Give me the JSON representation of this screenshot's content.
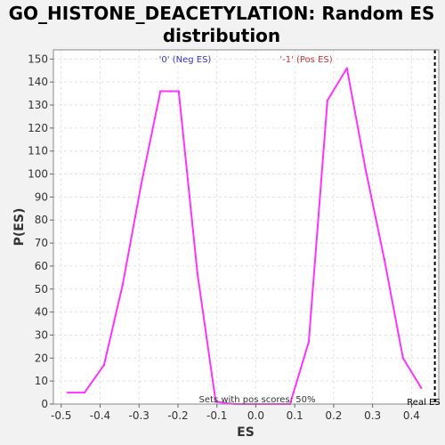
{
  "chart_data": {
    "type": "line",
    "title_line1": "GO_HISTONE_DEACETYLATION: Random ES",
    "title_line2": "distribution",
    "xlabel": "ES",
    "ylabel": "P(ES)",
    "xlim": [
      -0.52,
      0.47
    ],
    "ylim": [
      0,
      154
    ],
    "xticks": [
      -0.5,
      -0.4,
      -0.3,
      -0.2,
      -0.1,
      0.0,
      0.1,
      0.2,
      0.3,
      0.4
    ],
    "xtick_labels": [
      "-0.5",
      "-0.4",
      "-0.3",
      "-0.2",
      "-0.1",
      "0.0",
      "0.1",
      "0.2",
      "0.3",
      "0.4"
    ],
    "yticks": [
      0,
      10,
      20,
      30,
      40,
      50,
      60,
      70,
      80,
      90,
      100,
      110,
      120,
      130,
      140,
      150
    ],
    "ytick_labels": [
      "0",
      "10",
      "20",
      "30",
      "40",
      "50",
      "60",
      "70",
      "80",
      "90",
      "100",
      "110",
      "120",
      "130",
      "140",
      "150"
    ],
    "grid": true,
    "series": [
      {
        "color": "#ff33ff",
        "x": [
          -0.483,
          -0.44,
          -0.39,
          -0.342,
          -0.295,
          -0.245,
          -0.198,
          -0.15,
          -0.103,
          -0.055,
          -0.008,
          0.04,
          0.088,
          0.136,
          0.184,
          0.234,
          0.282,
          0.33,
          0.378,
          0.425
        ],
        "y": [
          5,
          5,
          17,
          52,
          95,
          136,
          136,
          57,
          1,
          0,
          0,
          0,
          0,
          27,
          132,
          146,
          102,
          63,
          20,
          7
        ]
      }
    ],
    "real_es": {
      "x": 0.46,
      "label": "Real ES",
      "color": "#000000"
    },
    "annotations": {
      "neg": {
        "text": "'0' (Neg ES)",
        "color": "#3333cc"
      },
      "pos": {
        "text": "'-1' (Pos ES)",
        "color": "#cc3333"
      },
      "pos_scores": {
        "text": "Sets with pos scores: 50%",
        "color": "#333333"
      }
    }
  }
}
